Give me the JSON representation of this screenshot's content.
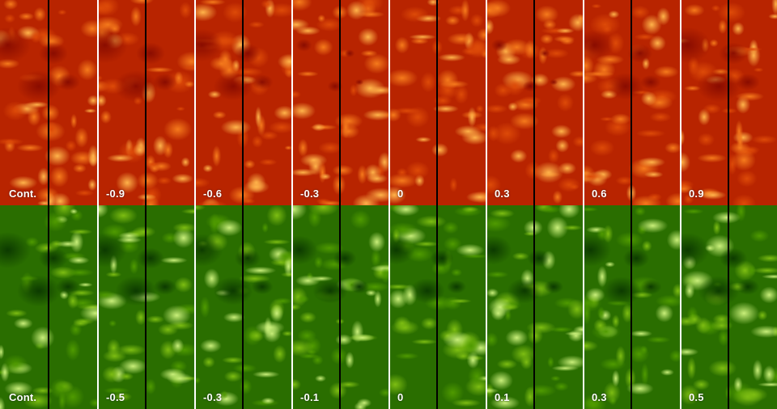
{
  "top_row": {
    "labels": [
      "Cont.",
      "-0.9",
      "-0.6",
      "-0.3",
      "0",
      "0.3",
      "0.6",
      "0.9"
    ],
    "palette": [
      "#8a0c00",
      "#b82400",
      "#dd4a08",
      "#f57a1c",
      "#ffb34a"
    ]
  },
  "bottom_row": {
    "labels": [
      "Cont.",
      "-0.5",
      "-0.3",
      "-0.1",
      "0",
      "0.1",
      "0.3",
      "0.5"
    ],
    "palette": [
      "#0c3a00",
      "#2a6e00",
      "#4f9a00",
      "#7dbd12",
      "#c9ef7a"
    ]
  }
}
